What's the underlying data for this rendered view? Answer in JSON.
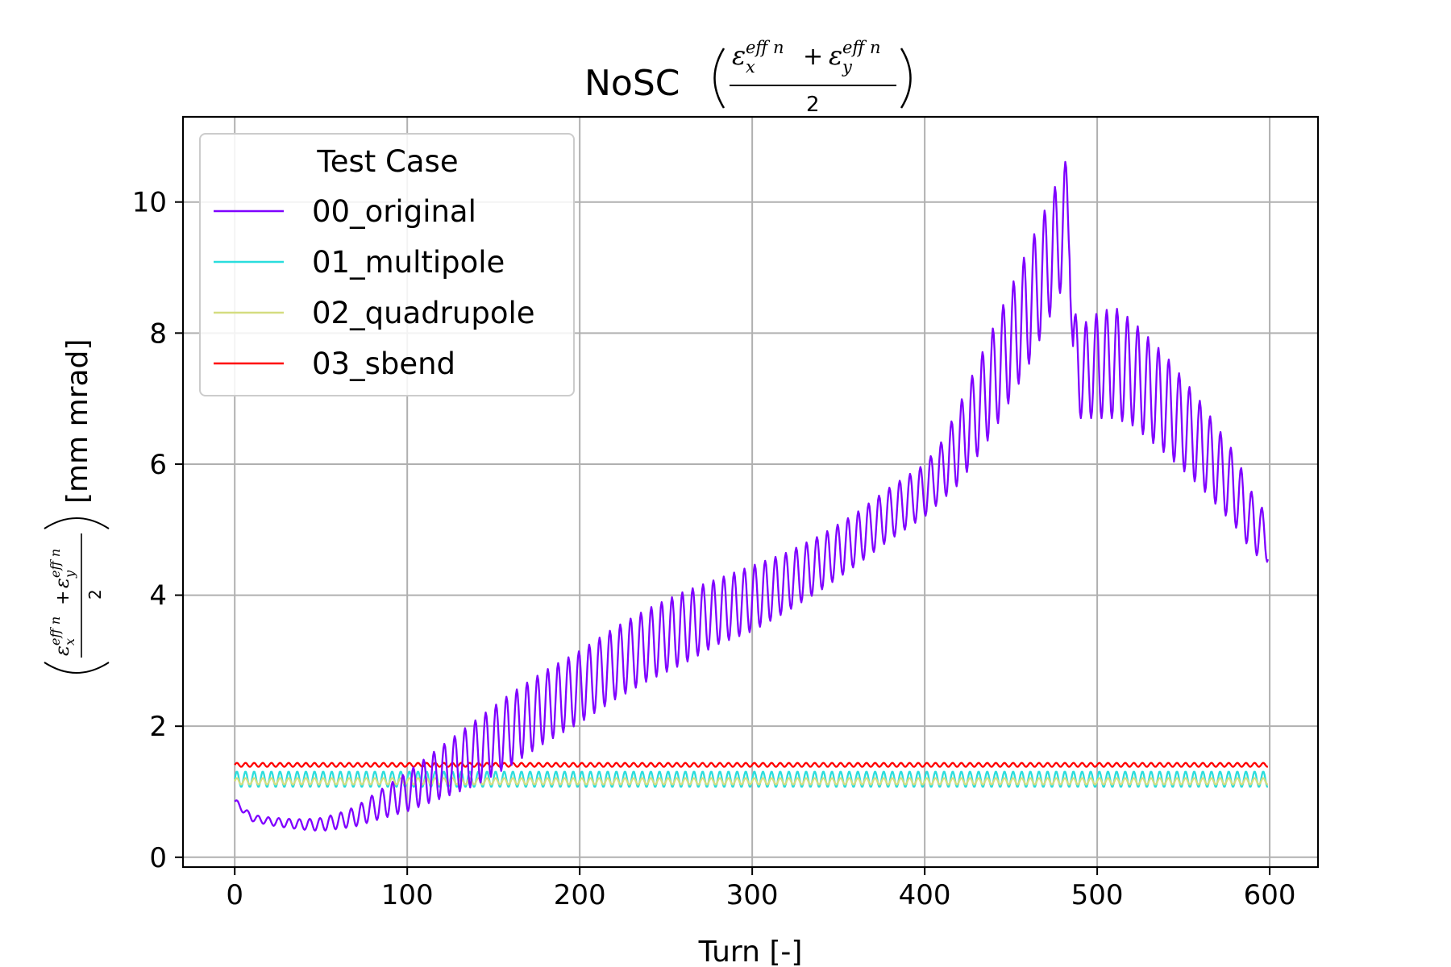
{
  "chart_data": {
    "type": "line",
    "title": {
      "main": "NoSC",
      "numerator_1": "ε",
      "numerator_1_sup": "eff n",
      "numerator_1_sub": "x",
      "plus": "+",
      "numerator_2": "ε",
      "numerator_2_sup": "eff n",
      "numerator_2_sub": "y",
      "denominator": "2"
    },
    "xlabel": "Turn [-]",
    "ylabel_unit": "[mm mrad]",
    "xlim": [
      -30,
      628
    ],
    "ylim": [
      -0.15,
      11.3
    ],
    "xticks": [
      0,
      100,
      200,
      300,
      400,
      500,
      600
    ],
    "yticks": [
      0,
      2,
      4,
      6,
      8,
      10
    ],
    "grid": true,
    "legend": {
      "title": "Test Case",
      "placement": "upper-left"
    },
    "series": [
      {
        "name": "00_original",
        "color": "#7f00ff",
        "x_start": 0,
        "x_end": 599,
        "oscillation_period_turns": 6,
        "envelope_x": [
          0,
          10,
          20,
          30,
          40,
          50,
          60,
          70,
          80,
          100,
          120,
          140,
          160,
          180,
          200,
          220,
          240,
          260,
          280,
          300,
          320,
          340,
          360,
          380,
          400,
          410,
          420,
          440,
          460,
          470,
          480,
          484,
          486,
          490,
          500,
          510,
          520,
          540,
          560,
          580,
          590,
          599
        ],
        "envelope_mid": [
          0.85,
          0.6,
          0.55,
          0.52,
          0.5,
          0.5,
          0.55,
          0.62,
          0.75,
          1.0,
          1.3,
          1.6,
          1.95,
          2.3,
          2.6,
          2.95,
          3.25,
          3.5,
          3.75,
          3.95,
          4.2,
          4.5,
          4.85,
          5.25,
          5.6,
          5.9,
          6.3,
          7.3,
          8.4,
          9.0,
          9.6,
          9.9,
          7.8,
          7.4,
          7.5,
          7.55,
          7.4,
          6.9,
          6.3,
          5.6,
          5.1,
          4.85
        ],
        "envelope_amp": [
          0.05,
          0.05,
          0.06,
          0.07,
          0.08,
          0.1,
          0.12,
          0.15,
          0.2,
          0.3,
          0.4,
          0.5,
          0.55,
          0.55,
          0.55,
          0.55,
          0.55,
          0.55,
          0.5,
          0.5,
          0.45,
          0.42,
          0.4,
          0.4,
          0.4,
          0.45,
          0.6,
          0.8,
          0.9,
          0.9,
          0.9,
          0.9,
          0.6,
          0.7,
          0.8,
          0.85,
          0.8,
          0.75,
          0.65,
          0.55,
          0.45,
          0.35
        ]
      },
      {
        "name": "01_multipole",
        "color": "#2adddd",
        "x_start": 0,
        "x_end": 599,
        "oscillation_period_turns": 5,
        "mean": 1.19,
        "amplitude": 0.12
      },
      {
        "name": "02_quadrupole",
        "color": "#d4dd80",
        "x_start": 0,
        "x_end": 599,
        "oscillation_period_turns": 5,
        "mean": 1.16,
        "amplitude": 0.05
      },
      {
        "name": "03_sbend",
        "color": "#ff0000",
        "x_start": 0,
        "x_end": 599,
        "oscillation_period_turns": 5,
        "mean": 1.41,
        "amplitude": 0.03
      }
    ]
  }
}
